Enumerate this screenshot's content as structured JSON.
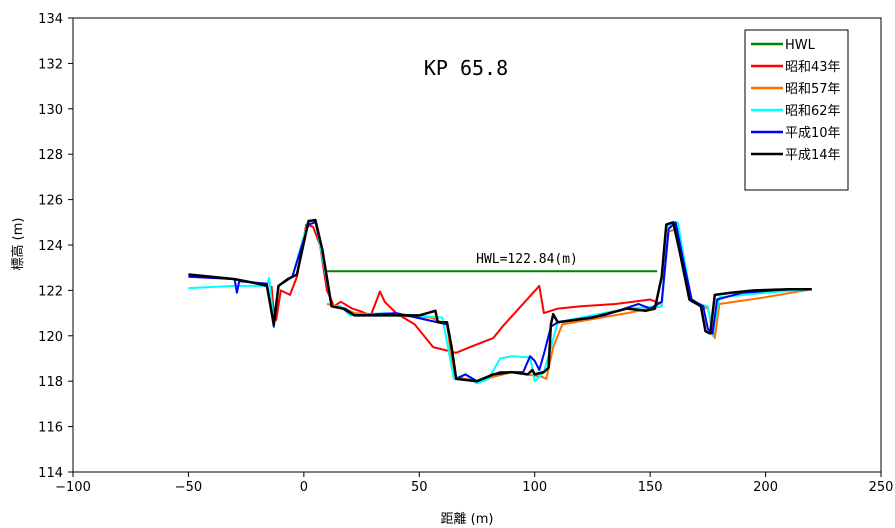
{
  "chart_data": {
    "type": "line",
    "title": "KP 65.8",
    "xlabel": "距離 (m)",
    "ylabel": "標高 (m)",
    "xlim": [
      -100,
      250
    ],
    "ylim": [
      114,
      134
    ],
    "x_ticks": [
      "-100",
      "-50",
      "0",
      "50",
      "100",
      "150",
      "200",
      "250"
    ],
    "y_ticks": [
      "114",
      "116",
      "118",
      "120",
      "122",
      "124",
      "126",
      "128",
      "130",
      "132",
      "134"
    ],
    "grid": false,
    "legend_position": "top-right",
    "annotation": "HWL=122.84(m)",
    "series": [
      {
        "name": "HWL",
        "color": "#008000",
        "points": [
          [
            10,
            122.84
          ],
          [
            153,
            122.84
          ]
        ]
      },
      {
        "name": "昭和43年",
        "color": "#ff0000",
        "points": [
          [
            -14,
            122.2
          ],
          [
            -13,
            121.0
          ],
          [
            -12,
            120.7
          ],
          [
            -10,
            122.0
          ],
          [
            -6,
            121.8
          ],
          [
            -3,
            122.6
          ],
          [
            1,
            124.9
          ],
          [
            4,
            124.8
          ],
          [
            7,
            124.0
          ],
          [
            10,
            122.0
          ],
          [
            13,
            121.3
          ],
          [
            16,
            121.5
          ],
          [
            21,
            121.2
          ],
          [
            24,
            121.1
          ],
          [
            29,
            120.9
          ],
          [
            33,
            121.95
          ],
          [
            35,
            121.5
          ],
          [
            40,
            121.0
          ],
          [
            48,
            120.5
          ],
          [
            56,
            119.5
          ],
          [
            66,
            119.25
          ],
          [
            72,
            119.5
          ],
          [
            82,
            119.9
          ],
          [
            86,
            120.4
          ],
          [
            102,
            122.2
          ],
          [
            104,
            121.0
          ],
          [
            110,
            121.2
          ],
          [
            120,
            121.3
          ],
          [
            135,
            121.4
          ],
          [
            150,
            121.6
          ],
          [
            155,
            121.4
          ]
        ]
      },
      {
        "name": "昭和57年",
        "color": "#ff7000",
        "points": [
          [
            10,
            121.4
          ],
          [
            15,
            121.3
          ],
          [
            22,
            121.0
          ],
          [
            55,
            120.8
          ],
          [
            62,
            120.5
          ],
          [
            65,
            118.2
          ],
          [
            75,
            118.0
          ],
          [
            90,
            118.4
          ],
          [
            103,
            118.2
          ],
          [
            105,
            118.1
          ],
          [
            108,
            119.5
          ],
          [
            112,
            120.5
          ],
          [
            140,
            121.0
          ],
          [
            155,
            121.3
          ],
          [
            158,
            124.6
          ],
          [
            162,
            124.7
          ],
          [
            168,
            121.5
          ],
          [
            175,
            121.2
          ],
          [
            178,
            119.9
          ],
          [
            180,
            121.4
          ],
          [
            200,
            121.7
          ],
          [
            220,
            122.05
          ]
        ]
      },
      {
        "name": "昭和62年",
        "color": "#00ffff",
        "points": [
          [
            -50,
            122.1
          ],
          [
            -30,
            122.2
          ],
          [
            -16,
            122.2
          ],
          [
            -15,
            122.55
          ],
          [
            -13,
            120.5
          ],
          [
            -11,
            122.2
          ],
          [
            -5,
            122.6
          ],
          [
            2,
            125.1
          ],
          [
            5,
            125.05
          ],
          [
            8,
            123.5
          ],
          [
            12,
            121.3
          ],
          [
            16,
            121.3
          ],
          [
            20,
            120.9
          ],
          [
            35,
            121.0
          ],
          [
            60,
            120.8
          ],
          [
            65,
            118.1
          ],
          [
            70,
            118.3
          ],
          [
            75,
            117.9
          ],
          [
            80,
            118.1
          ],
          [
            85,
            119.0
          ],
          [
            90,
            119.1
          ],
          [
            98,
            119.05
          ],
          [
            100,
            118.0
          ],
          [
            104,
            118.4
          ],
          [
            107,
            119.5
          ],
          [
            110,
            120.6
          ],
          [
            125,
            120.9
          ],
          [
            140,
            121.2
          ],
          [
            155,
            121.3
          ],
          [
            158,
            124.8
          ],
          [
            162,
            125.0
          ],
          [
            168,
            121.5
          ],
          [
            175,
            121.3
          ],
          [
            177,
            120.0
          ],
          [
            180,
            121.7
          ],
          [
            200,
            121.9
          ],
          [
            220,
            122.05
          ]
        ]
      },
      {
        "name": "平成10年",
        "color": "#0000ff",
        "points": [
          [
            -50,
            122.6
          ],
          [
            -30,
            122.5
          ],
          [
            -29,
            121.9
          ],
          [
            -28,
            122.4
          ],
          [
            -16,
            122.3
          ],
          [
            -13,
            120.4
          ],
          [
            -11,
            122.2
          ],
          [
            -5,
            122.6
          ],
          [
            2,
            124.9
          ],
          [
            5,
            125.0
          ],
          [
            8,
            123.8
          ],
          [
            12,
            121.3
          ],
          [
            18,
            121.2
          ],
          [
            22,
            120.9
          ],
          [
            40,
            121.0
          ],
          [
            62,
            120.5
          ],
          [
            64,
            119.5
          ],
          [
            66,
            118.1
          ],
          [
            70,
            118.3
          ],
          [
            75,
            118.0
          ],
          [
            85,
            118.4
          ],
          [
            95,
            118.4
          ],
          [
            98,
            119.1
          ],
          [
            100,
            118.9
          ],
          [
            102,
            118.5
          ],
          [
            104,
            119.2
          ],
          [
            107,
            120.4
          ],
          [
            110,
            120.6
          ],
          [
            130,
            120.9
          ],
          [
            145,
            121.4
          ],
          [
            150,
            121.2
          ],
          [
            155,
            121.5
          ],
          [
            158,
            124.7
          ],
          [
            161,
            125.0
          ],
          [
            165,
            123.0
          ],
          [
            168,
            121.6
          ],
          [
            173,
            121.3
          ],
          [
            175,
            120.3
          ],
          [
            177,
            120.1
          ],
          [
            179,
            121.6
          ],
          [
            190,
            121.9
          ],
          [
            210,
            122.05
          ],
          [
            220,
            122.05
          ]
        ]
      },
      {
        "name": "平成14年",
        "color": "#000000",
        "points": [
          [
            -50,
            122.7
          ],
          [
            -40,
            122.6
          ],
          [
            -30,
            122.5
          ],
          [
            -20,
            122.3
          ],
          [
            -16,
            122.2
          ],
          [
            -13,
            120.5
          ],
          [
            -11,
            122.2
          ],
          [
            -7,
            122.5
          ],
          [
            -3,
            122.7
          ],
          [
            2,
            125.05
          ],
          [
            5,
            125.1
          ],
          [
            8,
            123.8
          ],
          [
            12,
            121.3
          ],
          [
            17,
            121.2
          ],
          [
            22,
            120.9
          ],
          [
            50,
            120.9
          ],
          [
            57,
            121.1
          ],
          [
            58,
            120.6
          ],
          [
            62,
            120.6
          ],
          [
            64,
            119.5
          ],
          [
            66,
            118.1
          ],
          [
            75,
            118.0
          ],
          [
            82,
            118.3
          ],
          [
            90,
            118.4
          ],
          [
            97,
            118.3
          ],
          [
            99,
            118.5
          ],
          [
            100,
            118.3
          ],
          [
            104,
            118.4
          ],
          [
            106,
            118.6
          ],
          [
            107,
            120.5
          ],
          [
            108,
            120.95
          ],
          [
            110,
            120.6
          ],
          [
            125,
            120.8
          ],
          [
            140,
            121.2
          ],
          [
            148,
            121.1
          ],
          [
            152,
            121.2
          ],
          [
            155,
            122.6
          ],
          [
            157,
            124.9
          ],
          [
            160,
            125.0
          ],
          [
            163,
            123.6
          ],
          [
            167,
            121.6
          ],
          [
            172,
            121.3
          ],
          [
            174,
            120.2
          ],
          [
            176,
            120.1
          ],
          [
            178,
            121.8
          ],
          [
            185,
            121.9
          ],
          [
            195,
            122.0
          ],
          [
            210,
            122.05
          ],
          [
            220,
            122.05
          ]
        ]
      }
    ]
  }
}
